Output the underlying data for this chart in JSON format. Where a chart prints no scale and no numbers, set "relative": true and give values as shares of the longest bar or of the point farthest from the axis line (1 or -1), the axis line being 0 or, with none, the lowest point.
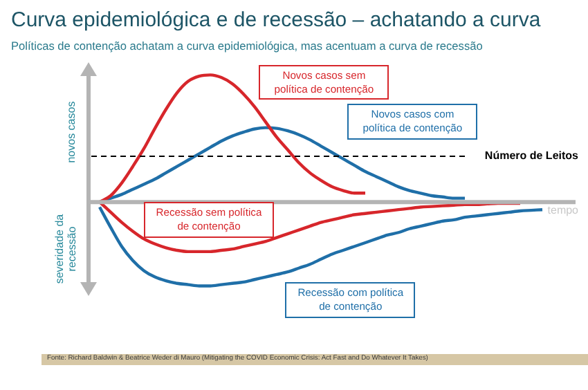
{
  "chart_data": {
    "type": "line",
    "title": "Curva epidemiológica e de recessão – achatando a curva",
    "subtitle": "Políticas de contenção achatam a curva epidemiológica, mas acentuam a curva de recessão",
    "xlabel": "tempo",
    "ylabel": "novos casos",
    "relative": true,
    "categories": [
      null,
      null,
      null,
      null,
      null,
      null,
      null,
      null,
      null,
      null,
      null,
      null,
      null,
      null,
      null,
      null,
      null,
      null,
      null,
      null,
      null,
      null,
      null,
      null,
      null,
      null,
      null,
      null,
      null,
      null,
      null,
      null,
      null,
      null,
      null,
      null,
      null,
      null,
      null,
      null,
      null
    ],
    "series": [
      {
        "name": "Novos casos sem política de contenção",
        "color": "#d7262b",
        "values": [
          0,
          0.05,
          0.15,
          0.28,
          0.42,
          0.58,
          0.73,
          0.86,
          0.95,
          0.99,
          1,
          0.98,
          0.93,
          0.85,
          0.75,
          0.63,
          0.51,
          0.41,
          0.31,
          0.23,
          0.17,
          0.12,
          0.09,
          0.07,
          0.07,
          null,
          null,
          null,
          null,
          null,
          null,
          null,
          null,
          null,
          null,
          null,
          null,
          null,
          null,
          null,
          null
        ]
      },
      {
        "name": "Novos casos com política de contenção",
        "color": "#1f6fa8",
        "values": [
          0,
          0.03,
          0.06,
          0.1,
          0.14,
          0.18,
          0.23,
          0.28,
          0.33,
          0.38,
          0.43,
          0.48,
          0.52,
          0.55,
          0.575,
          0.585,
          0.58,
          0.56,
          0.53,
          0.49,
          0.44,
          0.39,
          0.34,
          0.29,
          0.24,
          0.2,
          0.16,
          0.12,
          0.09,
          0.07,
          0.05,
          0.04,
          0.03,
          0.03,
          null,
          null,
          null,
          null,
          null,
          null,
          null
        ]
      },
      {
        "name": "Recessão sem política de contenção",
        "color": "#d7262b",
        "values": [
          0,
          -0.08,
          -0.16,
          -0.23,
          -0.29,
          -0.33,
          -0.36,
          -0.38,
          -0.39,
          -0.39,
          -0.39,
          -0.38,
          -0.37,
          -0.35,
          -0.33,
          -0.31,
          -0.28,
          -0.25,
          -0.22,
          -0.19,
          -0.16,
          -0.14,
          -0.12,
          -0.1,
          -0.09,
          -0.08,
          -0.07,
          -0.06,
          -0.05,
          -0.04,
          -0.035,
          -0.03,
          -0.025,
          -0.02,
          -0.02,
          -0.015,
          -0.01,
          -0.01,
          -0.01,
          null,
          null
        ]
      },
      {
        "name": "Recessão com política de contenção",
        "color": "#1f6fa8",
        "values": [
          -0.04,
          -0.2,
          -0.35,
          -0.46,
          -0.54,
          -0.59,
          -0.62,
          -0.64,
          -0.65,
          -0.66,
          -0.66,
          -0.65,
          -0.64,
          -0.63,
          -0.61,
          -0.59,
          -0.57,
          -0.55,
          -0.52,
          -0.49,
          -0.45,
          -0.41,
          -0.38,
          -0.35,
          -0.32,
          -0.29,
          -0.26,
          -0.24,
          -0.21,
          -0.19,
          -0.17,
          -0.15,
          -0.14,
          -0.12,
          -0.11,
          -0.1,
          -0.09,
          -0.08,
          -0.07,
          -0.065,
          -0.06
        ]
      }
    ],
    "ref_lines": [
      {
        "axis": "y",
        "value": 0.36,
        "label": "Número de Leitos",
        "color": "#000000",
        "line_style": "dashed"
      }
    ],
    "annotations": [
      "severidade da recessão",
      "Fonte: Richard Baldwin & Beatrice Weder di Mauro (Mitigating the COVID Economic Crisis: Act Fast and Do Whatever It Takes)"
    ]
  }
}
